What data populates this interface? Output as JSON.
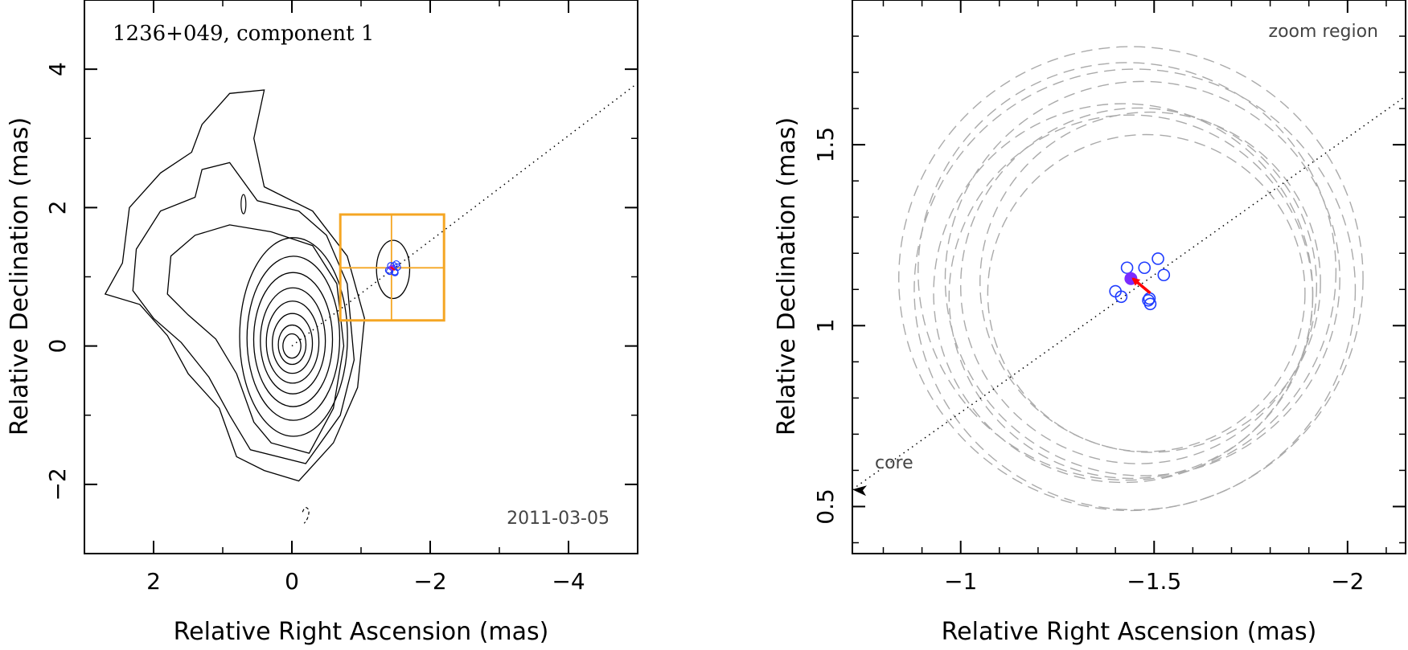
{
  "chart_data": [
    {
      "type": "contour",
      "title": "1236+049, component 1",
      "date": "2011-03-05",
      "xlabel": "Relative Right Ascension (mas)",
      "ylabel": "Relative Declination (mas)",
      "xlim": [
        3,
        -5
      ],
      "ylim": [
        -3,
        5
      ],
      "xticks": [
        2,
        0,
        -2,
        -4
      ],
      "yticks": [
        -2,
        0,
        2,
        4
      ],
      "xtick_labels": [
        "2",
        "0",
        "−2",
        "−4"
      ],
      "ytick_labels": [
        "−2",
        "0",
        "2",
        "4"
      ],
      "core": [
        0,
        0
      ],
      "component": [
        -1.44,
        1.13
      ],
      "jet_direction_line": {
        "from": [
          0,
          0
        ],
        "to": [
          -5,
          3.8
        ]
      },
      "zoom_box": {
        "x": [
          -0.7,
          -2.2
        ],
        "y": [
          0.37,
          1.9
        ]
      },
      "core_contour_semi_axes_mas": [
        0.13,
        0.2,
        0.29,
        0.38,
        0.47,
        0.57,
        0.67,
        0.78
      ],
      "component_contour_semi_axes_mas": [
        [
          0.24,
          0.42
        ]
      ],
      "colors": {
        "box": "#f5a623",
        "epochs": "#1f3cff",
        "current": "#7a2bff",
        "arrow": "#ff0000",
        "contours": "#000000"
      }
    },
    {
      "type": "scatter",
      "title": "zoom region",
      "xlabel": "Relative Right Ascension (mas)",
      "ylabel": "Relative Declination (mas)",
      "xlim": [
        -0.72,
        -2.15
      ],
      "ylim": [
        0.37,
        1.9
      ],
      "xticks": [
        -1,
        -1.5,
        -2
      ],
      "yticks": [
        0.5,
        1,
        1.5
      ],
      "xtick_labels": [
        "−1",
        "−1.5",
        "−2"
      ],
      "ytick_labels": [
        "0.5",
        "1",
        "1.5"
      ],
      "core_label": "core",
      "epoch_positions": [
        {
          "x": -1.43,
          "y": 1.16
        },
        {
          "x": -1.475,
          "y": 1.16
        },
        {
          "x": -1.51,
          "y": 1.185
        },
        {
          "x": -1.525,
          "y": 1.14
        },
        {
          "x": -1.4,
          "y": 1.095
        },
        {
          "x": -1.415,
          "y": 1.08
        },
        {
          "x": -1.485,
          "y": 1.07
        },
        {
          "x": -1.49,
          "y": 1.06
        },
        {
          "x": -1.488,
          "y": 1.075
        }
      ],
      "current_position": {
        "x": -1.44,
        "y": 1.13
      },
      "motion_arrow": {
        "from": [
          -1.49,
          1.09
        ],
        "to": [
          -1.445,
          1.13
        ]
      },
      "uncertainty_circles": [
        {
          "cx": -1.44,
          "cy": 1.13,
          "r": 0.6
        },
        {
          "cx": -1.45,
          "cy": 1.1,
          "r": 0.57
        },
        {
          "cx": -1.43,
          "cy": 1.15,
          "r": 0.54
        },
        {
          "cx": -1.47,
          "cy": 1.13,
          "r": 0.51
        },
        {
          "cx": -1.42,
          "cy": 1.09,
          "r": 0.49
        },
        {
          "cx": -1.46,
          "cy": 1.11,
          "r": 0.46
        },
        {
          "cx": -1.49,
          "cy": 1.12,
          "r": 0.44
        },
        {
          "cx": -1.44,
          "cy": 1.08,
          "r": 0.47
        },
        {
          "cx": -1.48,
          "cy": 1.09,
          "r": 0.41
        }
      ]
    }
  ]
}
